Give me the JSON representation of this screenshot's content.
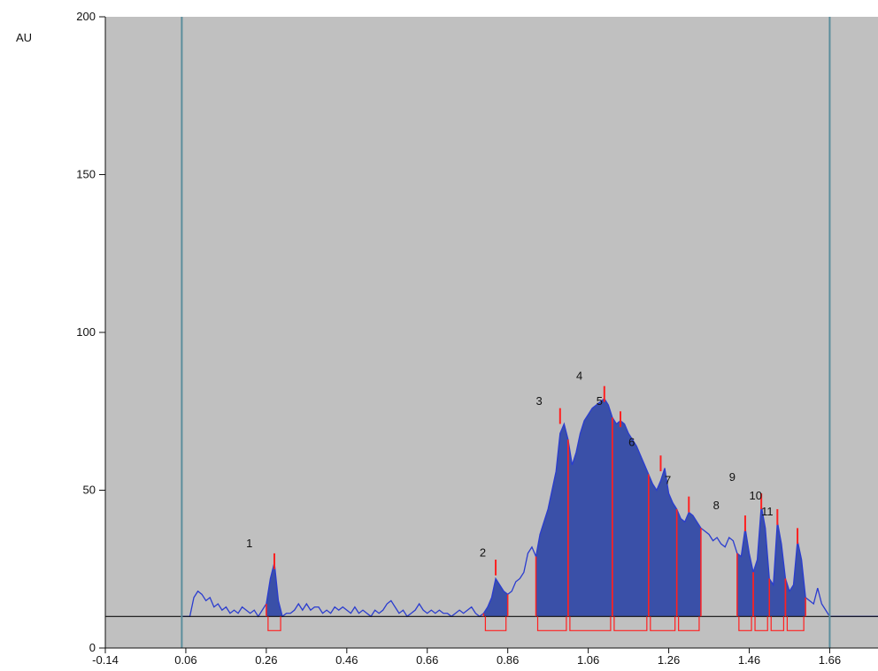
{
  "chart_data": {
    "type": "area",
    "ylabel": "AU",
    "xlim": [
      -0.14,
      1.78
    ],
    "ylim": [
      0,
      200
    ],
    "x_ticks": [
      "-0.14",
      "0.06",
      "0.26",
      "0.46",
      "0.66",
      "0.86",
      "1.06",
      "1.26",
      "1.46",
      "1.66"
    ],
    "y_ticks": [
      "0",
      "50",
      "100",
      "150",
      "200"
    ],
    "baseline_y": 10,
    "vertical_lines_x": [
      0.05,
      1.66
    ],
    "trace": [
      [
        0.05,
        10
      ],
      [
        0.07,
        10
      ],
      [
        0.08,
        16
      ],
      [
        0.09,
        18
      ],
      [
        0.1,
        17
      ],
      [
        0.11,
        15
      ],
      [
        0.12,
        16
      ],
      [
        0.13,
        13
      ],
      [
        0.14,
        14
      ],
      [
        0.15,
        12
      ],
      [
        0.16,
        13
      ],
      [
        0.17,
        11
      ],
      [
        0.18,
        12
      ],
      [
        0.19,
        11
      ],
      [
        0.2,
        13
      ],
      [
        0.21,
        12
      ],
      [
        0.22,
        11
      ],
      [
        0.23,
        12
      ],
      [
        0.24,
        10
      ],
      [
        0.25,
        12
      ],
      [
        0.26,
        14
      ],
      [
        0.27,
        22
      ],
      [
        0.28,
        27
      ],
      [
        0.29,
        15
      ],
      [
        0.3,
        10
      ],
      [
        0.31,
        11
      ],
      [
        0.32,
        11
      ],
      [
        0.33,
        12
      ],
      [
        0.34,
        14
      ],
      [
        0.35,
        12
      ],
      [
        0.36,
        14
      ],
      [
        0.37,
        12
      ],
      [
        0.38,
        13
      ],
      [
        0.39,
        13
      ],
      [
        0.4,
        11
      ],
      [
        0.41,
        12
      ],
      [
        0.42,
        11
      ],
      [
        0.43,
        13
      ],
      [
        0.44,
        12
      ],
      [
        0.45,
        13
      ],
      [
        0.46,
        12
      ],
      [
        0.47,
        11
      ],
      [
        0.48,
        13
      ],
      [
        0.49,
        11
      ],
      [
        0.5,
        12
      ],
      [
        0.51,
        11
      ],
      [
        0.52,
        10
      ],
      [
        0.53,
        12
      ],
      [
        0.54,
        11
      ],
      [
        0.55,
        12
      ],
      [
        0.56,
        14
      ],
      [
        0.57,
        15
      ],
      [
        0.58,
        13
      ],
      [
        0.59,
        11
      ],
      [
        0.6,
        12
      ],
      [
        0.61,
        10
      ],
      [
        0.62,
        11
      ],
      [
        0.63,
        12
      ],
      [
        0.64,
        14
      ],
      [
        0.65,
        12
      ],
      [
        0.66,
        11
      ],
      [
        0.67,
        12
      ],
      [
        0.68,
        11
      ],
      [
        0.69,
        12
      ],
      [
        0.7,
        11
      ],
      [
        0.71,
        11
      ],
      [
        0.72,
        10
      ],
      [
        0.73,
        11
      ],
      [
        0.74,
        12
      ],
      [
        0.75,
        11
      ],
      [
        0.76,
        12
      ],
      [
        0.77,
        13
      ],
      [
        0.78,
        11
      ],
      [
        0.79,
        10
      ],
      [
        0.8,
        11
      ],
      [
        0.81,
        13
      ],
      [
        0.82,
        16
      ],
      [
        0.83,
        22
      ],
      [
        0.84,
        20
      ],
      [
        0.85,
        18
      ],
      [
        0.86,
        17
      ],
      [
        0.87,
        18
      ],
      [
        0.88,
        21
      ],
      [
        0.89,
        22
      ],
      [
        0.9,
        24
      ],
      [
        0.91,
        30
      ],
      [
        0.92,
        32
      ],
      [
        0.93,
        29
      ],
      [
        0.94,
        36
      ],
      [
        0.95,
        40
      ],
      [
        0.96,
        44
      ],
      [
        0.97,
        50
      ],
      [
        0.98,
        56
      ],
      [
        0.99,
        68
      ],
      [
        1.0,
        71
      ],
      [
        1.01,
        66
      ],
      [
        1.02,
        58
      ],
      [
        1.03,
        62
      ],
      [
        1.04,
        68
      ],
      [
        1.05,
        72
      ],
      [
        1.06,
        74
      ],
      [
        1.07,
        76
      ],
      [
        1.08,
        77
      ],
      [
        1.09,
        78
      ],
      [
        1.1,
        79
      ],
      [
        1.11,
        77
      ],
      [
        1.12,
        73
      ],
      [
        1.13,
        71
      ],
      [
        1.14,
        72
      ],
      [
        1.15,
        71
      ],
      [
        1.16,
        68
      ],
      [
        1.17,
        66
      ],
      [
        1.18,
        64
      ],
      [
        1.19,
        61
      ],
      [
        1.2,
        58
      ],
      [
        1.21,
        55
      ],
      [
        1.22,
        52
      ],
      [
        1.23,
        50
      ],
      [
        1.24,
        53
      ],
      [
        1.25,
        57
      ],
      [
        1.26,
        49
      ],
      [
        1.27,
        46
      ],
      [
        1.28,
        44
      ],
      [
        1.29,
        41
      ],
      [
        1.3,
        40
      ],
      [
        1.31,
        43
      ],
      [
        1.32,
        42
      ],
      [
        1.33,
        40
      ],
      [
        1.34,
        38
      ],
      [
        1.35,
        37
      ],
      [
        1.36,
        36
      ],
      [
        1.37,
        34
      ],
      [
        1.38,
        35
      ],
      [
        1.39,
        33
      ],
      [
        1.4,
        32
      ],
      [
        1.41,
        35
      ],
      [
        1.42,
        34
      ],
      [
        1.43,
        30
      ],
      [
        1.44,
        29
      ],
      [
        1.45,
        38
      ],
      [
        1.46,
        30
      ],
      [
        1.47,
        24
      ],
      [
        1.48,
        28
      ],
      [
        1.49,
        45
      ],
      [
        1.5,
        38
      ],
      [
        1.51,
        22
      ],
      [
        1.52,
        20
      ],
      [
        1.53,
        40
      ],
      [
        1.54,
        33
      ],
      [
        1.55,
        22
      ],
      [
        1.56,
        18
      ],
      [
        1.57,
        20
      ],
      [
        1.58,
        34
      ],
      [
        1.59,
        28
      ],
      [
        1.6,
        16
      ],
      [
        1.61,
        15
      ],
      [
        1.62,
        14
      ],
      [
        1.63,
        19
      ],
      [
        1.64,
        14
      ],
      [
        1.65,
        12
      ],
      [
        1.66,
        10
      ],
      [
        1.7,
        10
      ],
      [
        1.78,
        10
      ]
    ],
    "peaks": [
      {
        "label": "1",
        "x": 0.28,
        "top": 30,
        "start": 0.26,
        "end": 0.3,
        "label_x": 0.21,
        "label_y": 32
      },
      {
        "label": "2",
        "x": 0.83,
        "top": 28,
        "start": 0.8,
        "end": 0.86,
        "label_x": 0.79,
        "label_y": 29
      },
      {
        "label": "3",
        "x": 0.99,
        "top": 76,
        "start": 0.93,
        "end": 1.01,
        "label_x": 0.93,
        "label_y": 77
      },
      {
        "label": "4",
        "x": 1.1,
        "top": 83,
        "start": 1.01,
        "end": 1.12,
        "label_x": 1.03,
        "label_y": 85
      },
      {
        "label": "5",
        "x": 1.14,
        "top": 75,
        "start": 1.12,
        "end": 1.21,
        "label_x": 1.08,
        "label_y": 77
      },
      {
        "label": "6",
        "x": 1.24,
        "top": 61,
        "start": 1.21,
        "end": 1.28,
        "label_x": 1.16,
        "label_y": 64
      },
      {
        "label": "7",
        "x": 1.31,
        "top": 48,
        "start": 1.28,
        "end": 1.34,
        "label_x": 1.25,
        "label_y": 52
      },
      {
        "label": "8",
        "x": 1.45,
        "top": 42,
        "start": 1.43,
        "end": 1.47,
        "label_x": 1.37,
        "label_y": 44
      },
      {
        "label": "9",
        "x": 1.49,
        "top": 49,
        "start": 1.47,
        "end": 1.51,
        "label_x": 1.41,
        "label_y": 53
      },
      {
        "label": "10",
        "x": 1.53,
        "top": 44,
        "start": 1.51,
        "end": 1.55,
        "label_x": 1.46,
        "label_y": 47
      },
      {
        "label": "11",
        "x": 1.58,
        "top": 38,
        "start": 1.55,
        "end": 1.6,
        "label_x": 1.49,
        "label_y": 42
      }
    ],
    "colors": {
      "plot_background": "#c0c0c0",
      "fill": "#3a50a8",
      "trace": "#2a3ccf",
      "peak_marks": "#ff2020",
      "baseline": "#111111",
      "vertical_lines": "#5b8d9c"
    }
  }
}
